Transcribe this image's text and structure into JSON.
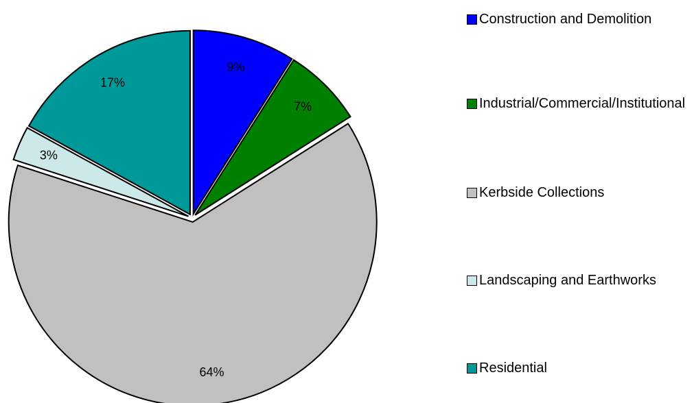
{
  "chart_data": {
    "type": "pie",
    "categories": [
      "Construction and Demolition",
      "Industrial/Commercial/Institutional",
      "Kerbside Collections",
      "Landscaping and Earthworks",
      "Residential"
    ],
    "values": [
      9,
      7,
      64,
      3,
      17
    ],
    "value_labels": [
      "9%",
      "7%",
      "64%",
      "3%",
      "17%"
    ],
    "colors": [
      "#0000ff",
      "#008000",
      "#c0c0c0",
      "#cce8e8",
      "#009999"
    ],
    "legend": "right"
  }
}
